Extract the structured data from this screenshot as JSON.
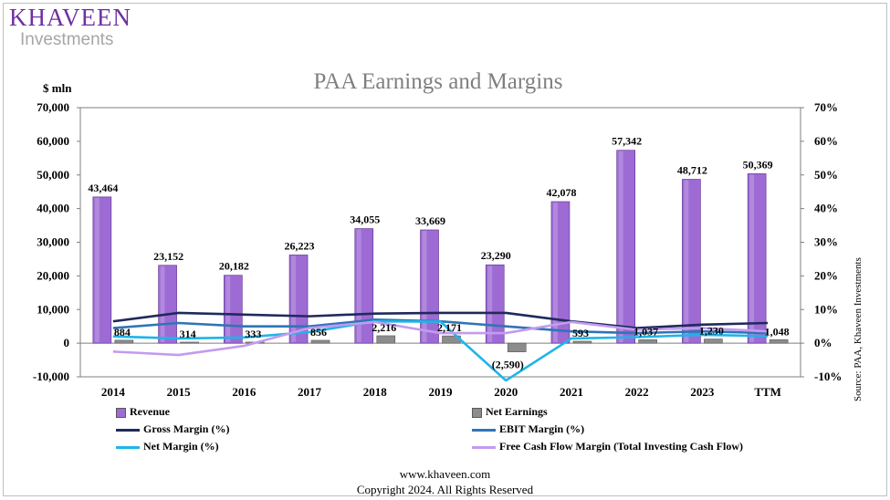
{
  "logo": {
    "main": "KHAVEEN",
    "sub": "Investments"
  },
  "footer": {
    "website": "www.khaveen.com",
    "copyright": "Copyright 2024. All Rights Reserved"
  },
  "chart_data": {
    "type": "bar",
    "title": "PAA Earnings and Margins",
    "ylabel": "$ mln",
    "y2label": "",
    "source": "Source: PAA, Khaveen Investments",
    "categories": [
      "2014",
      "2015",
      "2016",
      "2017",
      "2018",
      "2019",
      "2020",
      "2021",
      "2022",
      "2023",
      "TTM"
    ],
    "ylim": [
      -10000,
      70000
    ],
    "yticks": [
      -10000,
      0,
      10000,
      20000,
      30000,
      40000,
      50000,
      60000,
      70000
    ],
    "ytick_labels": [
      "-10,000",
      "0",
      "10,000",
      "20,000",
      "30,000",
      "40,000",
      "50,000",
      "60,000",
      "70,000"
    ],
    "y2lim": [
      -10,
      70
    ],
    "y2ticks": [
      -10,
      0,
      10,
      20,
      30,
      40,
      50,
      60,
      70
    ],
    "y2tick_labels": [
      "-10%",
      "0%",
      "10%",
      "20%",
      "30%",
      "40%",
      "50%",
      "60%",
      "70%"
    ],
    "bar_series": [
      {
        "name": "Revenue",
        "color": "#9d6bd3",
        "values": [
          43464,
          23152,
          20182,
          26223,
          34055,
          33669,
          23290,
          42078,
          57342,
          48712,
          50369
        ],
        "labels": [
          "43,464",
          "23,152",
          "20,182",
          "26,223",
          "34,055",
          "33,669",
          "23,290",
          "42,078",
          "57,342",
          "48,712",
          "50,369"
        ]
      },
      {
        "name": "Net Earnings",
        "color": "#8c8c8c",
        "values": [
          884,
          314,
          333,
          856,
          2216,
          2171,
          -2590,
          593,
          1037,
          1230,
          1048
        ],
        "labels": [
          "884",
          "314",
          "333",
          "856",
          "2,216",
          "2,171",
          "(2,590)",
          "593",
          "1,037",
          "1,230",
          "1,048"
        ]
      }
    ],
    "line_series": [
      {
        "name": "Gross Margin (%)",
        "color": "#1f2a5c",
        "values": [
          6.5,
          9.0,
          8.5,
          8.0,
          8.8,
          9.0,
          9.0,
          6.5,
          4.5,
          5.5,
          6.0
        ]
      },
      {
        "name": "EBIT Margin (%)",
        "color": "#2e75b6",
        "values": [
          4.5,
          6.0,
          5.0,
          5.0,
          7.0,
          6.5,
          5.0,
          3.5,
          3.0,
          3.5,
          3.0
        ]
      },
      {
        "name": "Net Margin (%)",
        "color": "#1fb4e8",
        "values": [
          2.0,
          1.4,
          1.7,
          3.3,
          6.5,
          6.4,
          -11.1,
          1.4,
          1.8,
          2.5,
          2.1
        ]
      },
      {
        "name": "Free Cash Flow Margin (Total Investing Cash Flow)",
        "color": "#c39bef",
        "values": [
          -2.5,
          -3.5,
          -0.8,
          4.5,
          6.3,
          3.0,
          3.0,
          6.3,
          4.0,
          4.5,
          3.5
        ]
      }
    ]
  }
}
